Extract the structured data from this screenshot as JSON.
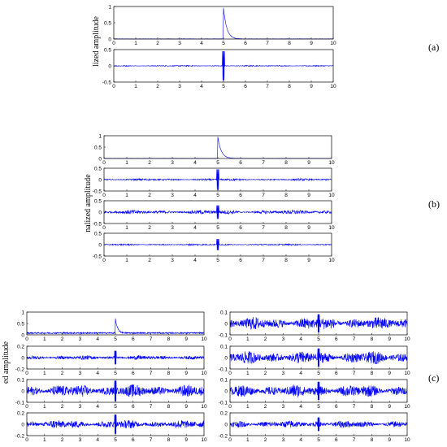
{
  "panel_labels": {
    "a": "(a)",
    "b": "(b)",
    "c": "(c)"
  },
  "ylabels": {
    "a": "lized amplitude",
    "b": "nalized amplitude",
    "c": "ed amplitude"
  },
  "chart_data": [
    {
      "type": "line",
      "panel": "a",
      "subplot": 1,
      "xlim": [
        0,
        10
      ],
      "ylim": [
        0,
        1
      ],
      "xticks": [
        "0",
        "1",
        "2",
        "3",
        "4",
        "5",
        "6",
        "7",
        "8",
        "9",
        "10"
      ],
      "yticks": [
        "0",
        "0.5",
        "1"
      ],
      "series": [
        {
          "color": "#0000ff",
          "signal": "impulse",
          "baseline": 0,
          "onset": 5.0,
          "peak": 0.95,
          "decay": 0.15,
          "noise": 0.01
        }
      ],
      "grid": false
    },
    {
      "type": "line",
      "panel": "a",
      "subplot": 2,
      "xlim": [
        0,
        10
      ],
      "ylim": [
        -0.5,
        0.5
      ],
      "xticks": [
        "0",
        "1",
        "2",
        "3",
        "4",
        "5",
        "6",
        "7",
        "8",
        "9",
        "10"
      ],
      "yticks": [
        "-0.5",
        "0",
        "0.5"
      ],
      "series": [
        {
          "color": "#0000ff",
          "signal": "noise",
          "noise": 0.02,
          "spike_at": 5.0,
          "spike": 0.45
        }
      ],
      "grid": false
    },
    {
      "type": "line",
      "panel": "b",
      "subplot": 1,
      "xlim": [
        0,
        10
      ],
      "ylim": [
        0,
        1
      ],
      "xticks": [
        "0",
        "1",
        "2",
        "3",
        "4",
        "5",
        "6",
        "7",
        "8",
        "9",
        "10"
      ],
      "yticks": [
        "0",
        "0.5",
        "1"
      ],
      "series": [
        {
          "color": "#0000ff",
          "signal": "impulse",
          "baseline": 0,
          "onset": 5.0,
          "peak": 0.95,
          "decay": 0.15,
          "noise": 0.01
        }
      ],
      "grid": false
    },
    {
      "type": "line",
      "panel": "b",
      "subplot": 2,
      "xlim": [
        0,
        10
      ],
      "ylim": [
        -0.5,
        0.5
      ],
      "xticks": [
        "0",
        "1",
        "2",
        "3",
        "4",
        "5",
        "6",
        "7",
        "8",
        "9",
        "10"
      ],
      "yticks": [
        "-0.5",
        "0",
        "0.5"
      ],
      "series": [
        {
          "color": "#0000ff",
          "signal": "noise",
          "noise": 0.05,
          "spike_at": 5.0,
          "spike": 0.45
        }
      ],
      "grid": false
    },
    {
      "type": "line",
      "panel": "b",
      "subplot": 3,
      "xlim": [
        0,
        10
      ],
      "ylim": [
        -0.5,
        0.5
      ],
      "xticks": [
        "0",
        "1",
        "2",
        "3",
        "4",
        "5",
        "6",
        "7",
        "8",
        "9",
        "10"
      ],
      "yticks": [
        "-0.5",
        "0",
        "0.5"
      ],
      "series": [
        {
          "color": "#0000ff",
          "signal": "noise",
          "noise": 0.1,
          "spike_at": 5.0,
          "spike": 0.3
        }
      ],
      "grid": false
    },
    {
      "type": "line",
      "panel": "b",
      "subplot": 4,
      "xlim": [
        0,
        10
      ],
      "ylim": [
        -0.5,
        0.5
      ],
      "xticks": [
        "0",
        "1",
        "2",
        "3",
        "4",
        "5",
        "6",
        "7",
        "8",
        "9",
        "10"
      ],
      "yticks": [
        "-0.5",
        "0",
        "0.5"
      ],
      "series": [
        {
          "color": "#0000ff",
          "signal": "noise",
          "noise": 0.04,
          "spike_at": 5.0,
          "spike": 0.25
        }
      ],
      "grid": false
    },
    {
      "type": "line",
      "panel": "c",
      "subplot": 1,
      "xlim": [
        0,
        10
      ],
      "ylim": [
        0,
        1
      ],
      "xticks": [
        "0",
        "1",
        "2",
        "3",
        "4",
        "5",
        "6",
        "7",
        "8",
        "9",
        "10"
      ],
      "yticks": [
        "0",
        "0.5",
        "1"
      ],
      "series": [
        {
          "color": "#0000ff",
          "signal": "impulse",
          "baseline": 0.08,
          "onset": 5.0,
          "peak": 0.62,
          "decay": 0.12,
          "noise": 0.03
        }
      ],
      "grid": false
    },
    {
      "type": "line",
      "panel": "c",
      "subplot": 2,
      "xlim": [
        0,
        10
      ],
      "ylim": [
        -0.2,
        0.2
      ],
      "xticks": [
        "0",
        "1",
        "2",
        "3",
        "4",
        "5",
        "6",
        "7",
        "8",
        "9",
        "10"
      ],
      "yticks": [
        "-0.2",
        "0",
        "0.2"
      ],
      "series": [
        {
          "color": "#0000ff",
          "signal": "noise",
          "noise": 0.04,
          "spike_at": 5.0,
          "spike": 0.12
        }
      ],
      "grid": false
    },
    {
      "type": "line",
      "panel": "c",
      "subplot": 3,
      "xlim": [
        0,
        10
      ],
      "ylim": [
        -0.1,
        0.1
      ],
      "xticks": [
        "0",
        "1",
        "2",
        "3",
        "4",
        "5",
        "6",
        "7",
        "8",
        "9",
        "10"
      ],
      "yticks": [
        "-0.1",
        "0",
        "0.1"
      ],
      "series": [
        {
          "color": "#0000ff",
          "signal": "noise",
          "noise": 0.06,
          "spike_at": 5.0,
          "spike": 0.09
        }
      ],
      "grid": false
    },
    {
      "type": "line",
      "panel": "c",
      "subplot": 4,
      "xlim": [
        0,
        10
      ],
      "ylim": [
        -0.2,
        0.2
      ],
      "xticks": [
        "0",
        "1",
        "2",
        "3",
        "4",
        "5",
        "6",
        "7",
        "8",
        "9",
        "10"
      ],
      "yticks": [
        "-0.2",
        "0",
        "0.2"
      ],
      "series": [
        {
          "color": "#0000ff",
          "signal": "noise",
          "noise": 0.08,
          "spike_at": 5.0,
          "spike": 0.17
        }
      ],
      "grid": false
    },
    {
      "type": "line",
      "panel": "c",
      "subplot": 5,
      "xlim": [
        0,
        10
      ],
      "ylim": [
        -0.1,
        0.1
      ],
      "xticks": [
        "0",
        "1",
        "2",
        "3",
        "4",
        "5",
        "6",
        "7",
        "8",
        "9",
        "10"
      ],
      "yticks": [
        "-0.1",
        "0",
        "0.1"
      ],
      "series": [
        {
          "color": "#0000ff",
          "signal": "noise",
          "noise": 0.06,
          "spike_at": 5.0,
          "spike": 0.08
        }
      ],
      "grid": false
    },
    {
      "type": "line",
      "panel": "c",
      "subplot": 6,
      "xlim": [
        0,
        10
      ],
      "ylim": [
        -0.1,
        0.1
      ],
      "xticks": [
        "0",
        "1",
        "2",
        "3",
        "4",
        "5",
        "6",
        "7",
        "8",
        "9",
        "10"
      ],
      "yticks": [
        "-0.1",
        "0",
        "0.1"
      ],
      "series": [
        {
          "color": "#0000ff",
          "signal": "noise",
          "noise": 0.06,
          "spike_at": 5.0,
          "spike": 0.08
        }
      ],
      "grid": false
    },
    {
      "type": "line",
      "panel": "c",
      "subplot": 7,
      "xlim": [
        0,
        10
      ],
      "ylim": [
        -0.1,
        0.1
      ],
      "xticks": [
        "0",
        "1",
        "2",
        "3",
        "4",
        "5",
        "6",
        "7",
        "8",
        "9",
        "10"
      ],
      "yticks": [
        "-0.1",
        "0",
        "0.1"
      ],
      "series": [
        {
          "color": "#0000ff",
          "signal": "noise",
          "noise": 0.06,
          "spike_at": 5.0,
          "spike": 0.08
        }
      ],
      "grid": false
    },
    {
      "type": "line",
      "panel": "c",
      "subplot": 8,
      "xlim": [
        0,
        10
      ],
      "ylim": [
        -0.2,
        0.2
      ],
      "xticks": [
        "0",
        "1",
        "2",
        "3",
        "4",
        "5",
        "6",
        "7",
        "8",
        "9",
        "10"
      ],
      "yticks": [
        "-0.2",
        "0",
        "0.2"
      ],
      "series": [
        {
          "color": "#0000ff",
          "signal": "noise",
          "noise": 0.07,
          "spike_at": 5.0,
          "spike": 0.12
        }
      ],
      "grid": false
    }
  ]
}
